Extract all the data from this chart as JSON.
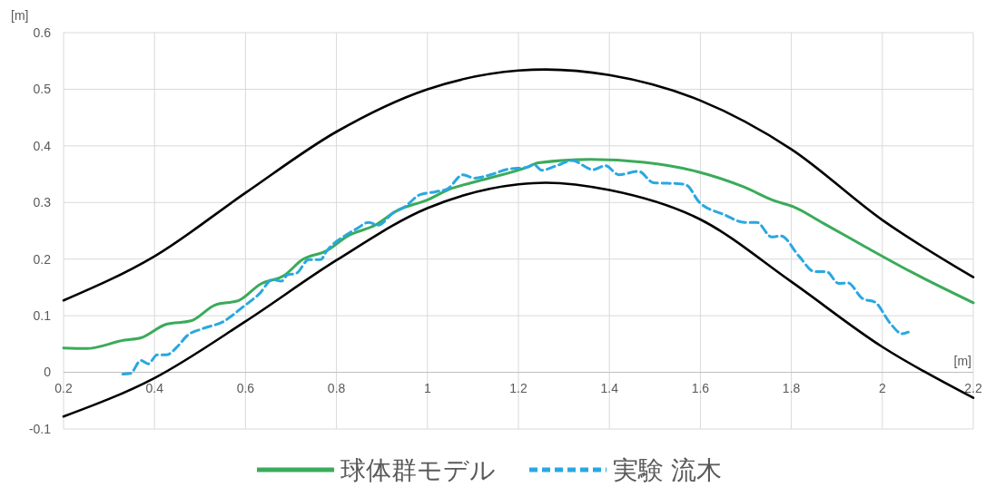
{
  "chart_data": {
    "type": "line",
    "xlabel": "[m]",
    "ylabel": "[m]",
    "xlim": [
      0.2,
      2.2
    ],
    "ylim": [
      -0.1,
      0.6
    ],
    "xticks": [
      0.2,
      0.4,
      0.6,
      0.8,
      1,
      1.2,
      1.4,
      1.6,
      1.8,
      2,
      2.2
    ],
    "yticks": [
      -0.1,
      0,
      0.1,
      0.2,
      0.3,
      0.4,
      0.5,
      0.6
    ],
    "grid": true,
    "legend": "bottom",
    "series": [
      {
        "color": "#000000",
        "line_style": "solid",
        "x": [
          0.2,
          0.4,
          0.6,
          0.8,
          1.0,
          1.2,
          1.26,
          1.4,
          1.6,
          1.8,
          2.0,
          2.2
        ],
        "values": [
          0.127,
          0.205,
          0.317,
          0.425,
          0.5,
          0.533,
          0.535,
          0.525,
          0.48,
          0.394,
          0.269,
          0.168
        ]
      },
      {
        "color": "#000000",
        "line_style": "solid",
        "x": [
          0.2,
          0.4,
          0.6,
          0.8,
          1.0,
          1.2,
          1.26,
          1.4,
          1.6,
          1.8,
          2.0,
          2.2
        ],
        "values": [
          -0.078,
          -0.01,
          0.09,
          0.198,
          0.29,
          0.332,
          0.335,
          0.322,
          0.27,
          0.16,
          0.045,
          -0.045
        ]
      },
      {
        "name": "球体群モデル",
        "color": "#3aab5a",
        "line_style": "solid",
        "x": [
          0.2,
          0.25,
          0.334,
          0.37,
          0.426,
          0.48,
          0.533,
          0.585,
          0.633,
          0.685,
          0.725,
          0.779,
          0.825,
          0.885,
          0.932,
          1.004,
          1.044,
          1.112,
          1.218,
          1.244,
          1.358,
          1.477,
          1.591,
          1.697,
          1.763,
          1.803,
          1.871,
          1.962,
          2.062,
          2.2
        ],
        "values": [
          0.043,
          0.042,
          0.057,
          0.061,
          0.085,
          0.091,
          0.119,
          0.127,
          0.156,
          0.171,
          0.199,
          0.215,
          0.241,
          0.26,
          0.285,
          0.306,
          0.322,
          0.338,
          0.362,
          0.37,
          0.376,
          0.371,
          0.355,
          0.327,
          0.303,
          0.293,
          0.263,
          0.222,
          0.178,
          0.123
        ]
      },
      {
        "name": "実験 流木",
        "color": "#29a8e0",
        "line_style": "dashed",
        "x": [
          0.33,
          0.347,
          0.37,
          0.386,
          0.406,
          0.426,
          0.452,
          0.472,
          0.505,
          0.552,
          0.592,
          0.632,
          0.659,
          0.679,
          0.692,
          0.712,
          0.739,
          0.765,
          0.779,
          0.818,
          0.845,
          0.871,
          0.891,
          0.925,
          0.951,
          0.984,
          1.018,
          1.044,
          1.078,
          1.104,
          1.138,
          1.178,
          1.218,
          1.234,
          1.251,
          1.284,
          1.318,
          1.364,
          1.391,
          1.421,
          1.464,
          1.497,
          1.557,
          1.571,
          1.597,
          1.651,
          1.697,
          1.724,
          1.757,
          1.777,
          1.817,
          1.851,
          1.877,
          1.904,
          1.924,
          1.957,
          1.984,
          2.017,
          2.044,
          2.057
        ],
        "values": [
          -0.003,
          -0.002,
          0.021,
          0.015,
          0.031,
          0.031,
          0.047,
          0.065,
          0.077,
          0.09,
          0.114,
          0.14,
          0.164,
          0.161,
          0.172,
          0.175,
          0.199,
          0.199,
          0.215,
          0.241,
          0.254,
          0.265,
          0.26,
          0.282,
          0.293,
          0.314,
          0.319,
          0.324,
          0.349,
          0.343,
          0.349,
          0.359,
          0.362,
          0.367,
          0.357,
          0.365,
          0.374,
          0.358,
          0.365,
          0.349,
          0.355,
          0.335,
          0.333,
          0.33,
          0.301,
          0.279,
          0.265,
          0.265,
          0.239,
          0.241,
          0.205,
          0.178,
          0.178,
          0.157,
          0.158,
          0.13,
          0.124,
          0.087,
          0.068,
          0.071
        ]
      }
    ]
  }
}
